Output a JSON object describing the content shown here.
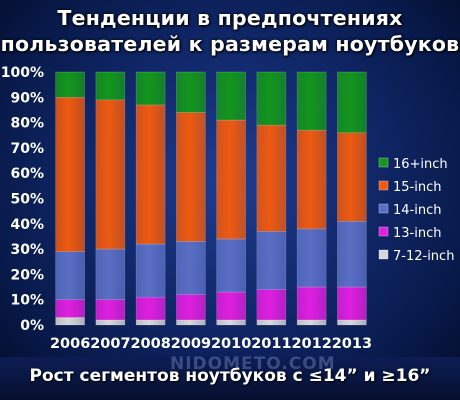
{
  "title_line1": "Тенденции в предпочтениях",
  "title_line2": "пользователей к размерам ноутбуков",
  "footer": "Рост сегментов ноутбуков с ≤14” и ≥16”",
  "watermark": "NIDOMETO.COM",
  "chart_data": {
    "type": "bar",
    "stacked": true,
    "categories": [
      "2006",
      "2007",
      "2008",
      "2009",
      "2010",
      "2011",
      "2012",
      "2013"
    ],
    "ylim": [
      0,
      100
    ],
    "y_ticks": [
      "0%",
      "10%",
      "20%",
      "30%",
      "40%",
      "50%",
      "60%",
      "70%",
      "80%",
      "90%",
      "100%"
    ],
    "grid": false,
    "legend_position": "right",
    "series": [
      {
        "name": "7-12-inch",
        "color": "#d8d8d8",
        "values": [
          3,
          2,
          2,
          2,
          2,
          2,
          2,
          2
        ]
      },
      {
        "name": "13-inch",
        "color": "#e01fe0",
        "values": [
          7,
          8,
          9,
          10,
          11,
          12,
          13,
          13
        ]
      },
      {
        "name": "14-inch",
        "color": "#5a6fc4",
        "values": [
          19,
          20,
          21,
          21,
          21,
          23,
          23,
          26
        ]
      },
      {
        "name": "15-inch",
        "color": "#ee5a10",
        "values": [
          61,
          59,
          55,
          51,
          47,
          42,
          39,
          35
        ]
      },
      {
        "name": "16+inch",
        "color": "#14961c",
        "values": [
          10,
          11,
          13,
          16,
          19,
          21,
          23,
          24
        ]
      }
    ]
  }
}
